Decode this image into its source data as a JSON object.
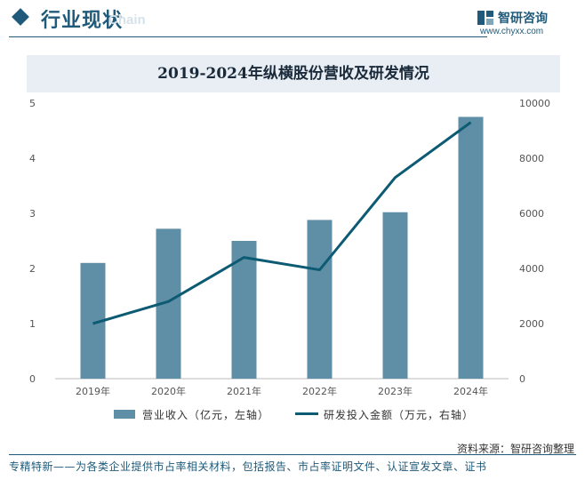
{
  "header": {
    "section_title": "行业现状",
    "ghost_text": "Chain",
    "brand_name": "智研咨询",
    "brand_url": "www.chyxx.com"
  },
  "colors": {
    "bar": "#5e8fa6",
    "line": "#0d5a73",
    "accent": "#1f5a7a"
  },
  "chart_data": {
    "type": "bar",
    "title": "2019-2024年纵横股份营收及研发情况",
    "categories": [
      "2019年",
      "2020年",
      "2021年",
      "2022年",
      "2023年",
      "2024年"
    ],
    "series": [
      {
        "name": "营业收入（亿元，左轴）",
        "type": "bar",
        "axis": "left",
        "values": [
          2.1,
          2.72,
          2.5,
          2.88,
          3.02,
          4.75
        ]
      },
      {
        "name": "研发投入金额（万元，右轴）",
        "type": "line",
        "axis": "right",
        "values": [
          2000,
          2800,
          4400,
          3950,
          7300,
          9300
        ]
      }
    ],
    "y_left": {
      "ylim": [
        0,
        5
      ],
      "ticks": [
        "0",
        "1",
        "2",
        "3",
        "4",
        "5"
      ]
    },
    "y_right": {
      "ylim": [
        0,
        10000
      ],
      "ticks": [
        "0",
        "2000",
        "4000",
        "6000",
        "8000",
        "10000"
      ]
    },
    "grid": false,
    "legend": "bottom"
  },
  "source": "资料来源：智研咨询整理",
  "footer": "专精特新——为各类企业提供市占率相关材料，包括报告、市占率证明文件、认证宣发文章、证书"
}
